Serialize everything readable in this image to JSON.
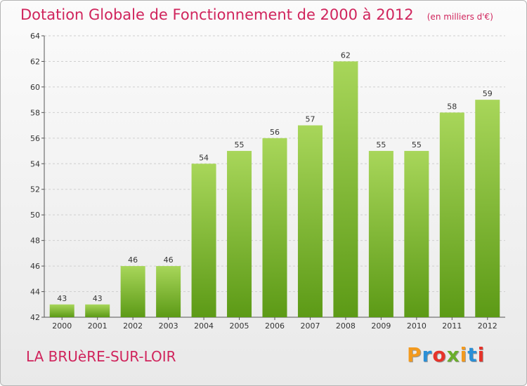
{
  "chart_data": {
    "type": "bar",
    "title": "Dotation Globale de Fonctionnement de 2000 à 2012",
    "unit": "(en milliers d'€)",
    "categories": [
      "2000",
      "2001",
      "2002",
      "2003",
      "2004",
      "2005",
      "2006",
      "2007",
      "2008",
      "2009",
      "2010",
      "2011",
      "2012"
    ],
    "values": [
      43,
      43,
      46,
      46,
      54,
      55,
      56,
      57,
      62,
      55,
      55,
      58,
      59
    ],
    "ylim": [
      42,
      64
    ],
    "yticks": [
      42,
      44,
      46,
      48,
      50,
      52,
      54,
      56,
      58,
      60,
      62,
      64
    ],
    "grid": true,
    "bar_color": "#8cc63f"
  },
  "footer": {
    "commune": "LA BRUèRE-SUR-LOIR",
    "brand": "Proxiti"
  },
  "colors": {
    "title": "#d0245c",
    "bar_light": "#a8d65a",
    "bar_dark": "#5c9a16"
  }
}
